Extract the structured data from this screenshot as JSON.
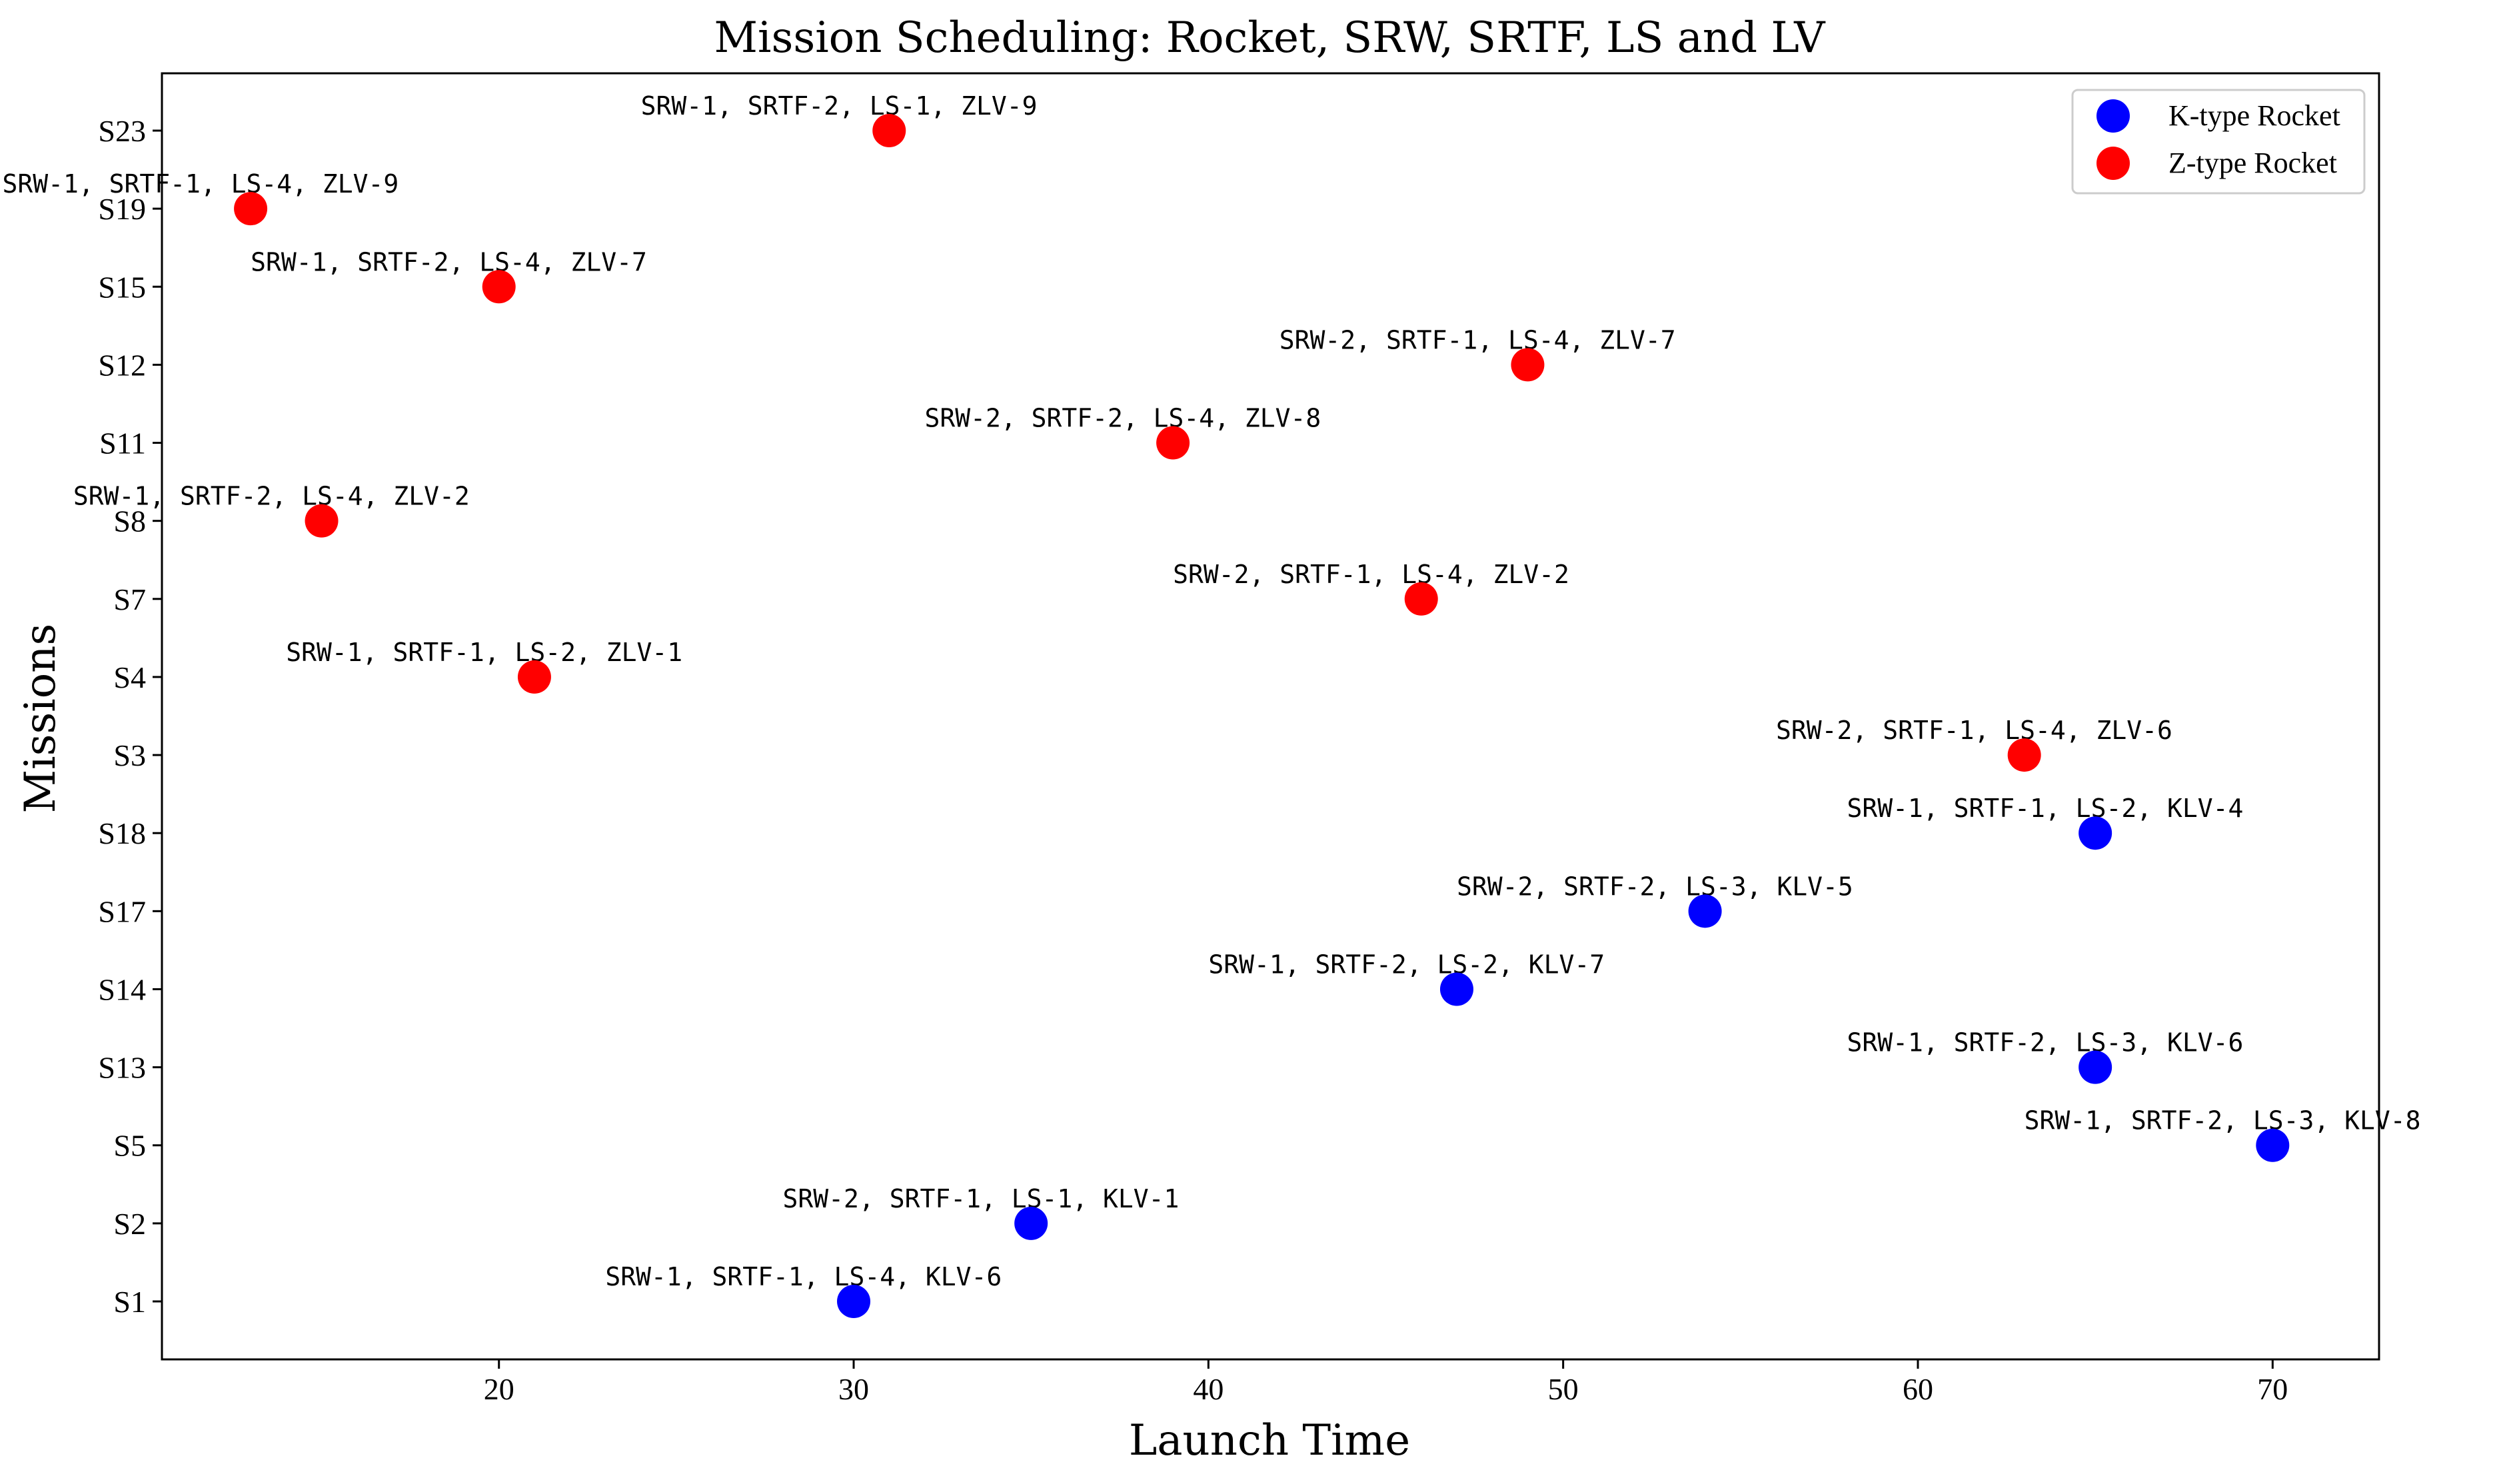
{
  "chart_data": {
    "type": "scatter",
    "title": "Mission Scheduling: Rocket, SRW, SRTF, LS and LV",
    "xlabel": "Launch Time",
    "ylabel": "Missions",
    "xlim": [
      10.5,
      73
    ],
    "xticks": [
      20,
      30,
      40,
      50,
      60,
      70
    ],
    "ycategories": [
      "S1",
      "S2",
      "S5",
      "S13",
      "S14",
      "S17",
      "S18",
      "S3",
      "S4",
      "S7",
      "S8",
      "S11",
      "S12",
      "S15",
      "S19",
      "S23"
    ],
    "legend": {
      "position": "top-right",
      "entries": [
        {
          "name": "K-type Rocket",
          "color": "#0000ff"
        },
        {
          "name": "Z-type Rocket",
          "color": "#ff0000"
        }
      ]
    },
    "series": [
      {
        "name": "K-type Rocket",
        "color": "#0000ff",
        "points": [
          {
            "mission": "S1",
            "x": 30,
            "label": "SRW-1, SRTF-1, LS-4, KLV-6"
          },
          {
            "mission": "S2",
            "x": 35,
            "label": "SRW-2, SRTF-1, LS-1, KLV-1"
          },
          {
            "mission": "S5",
            "x": 70,
            "label": "SRW-1, SRTF-2, LS-3, KLV-8"
          },
          {
            "mission": "S13",
            "x": 65,
            "label": "SRW-1, SRTF-2, LS-3, KLV-6"
          },
          {
            "mission": "S14",
            "x": 47,
            "label": "SRW-1, SRTF-2, LS-2, KLV-7"
          },
          {
            "mission": "S17",
            "x": 54,
            "label": "SRW-2, SRTF-2, LS-3, KLV-5"
          },
          {
            "mission": "S18",
            "x": 65,
            "label": "SRW-1, SRTF-1, LS-2, KLV-4"
          }
        ]
      },
      {
        "name": "Z-type Rocket",
        "color": "#ff0000",
        "points": [
          {
            "mission": "S3",
            "x": 63,
            "label": "SRW-2, SRTF-1, LS-4, ZLV-6"
          },
          {
            "mission": "S4",
            "x": 21,
            "label": "SRW-1, SRTF-1, LS-2, ZLV-1"
          },
          {
            "mission": "S7",
            "x": 46,
            "label": "SRW-2, SRTF-1, LS-4, ZLV-2"
          },
          {
            "mission": "S8",
            "x": 15,
            "label": "SRW-1, SRTF-2, LS-4, ZLV-2"
          },
          {
            "mission": "S11",
            "x": 39,
            "label": "SRW-2, SRTF-2, LS-4, ZLV-8"
          },
          {
            "mission": "S12",
            "x": 49,
            "label": "SRW-2, SRTF-1, LS-4, ZLV-7"
          },
          {
            "mission": "S15",
            "x": 20,
            "label": "SRW-1, SRTF-2, LS-4, ZLV-7"
          },
          {
            "mission": "S19",
            "x": 13,
            "label": "SRW-1, SRTF-1, LS-4, ZLV-9"
          },
          {
            "mission": "S23",
            "x": 31,
            "label": "SRW-1, SRTF-2, LS-1, ZLV-9"
          }
        ]
      }
    ]
  }
}
